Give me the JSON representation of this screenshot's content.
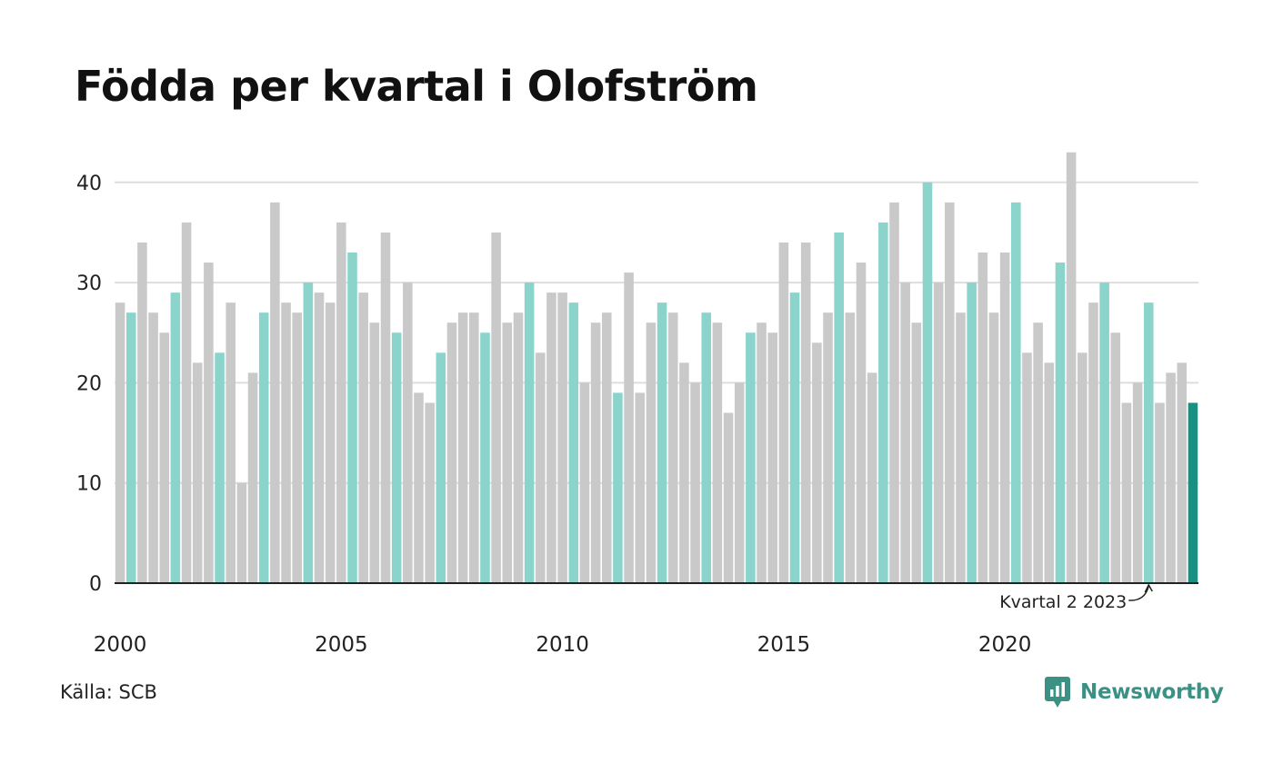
{
  "chart_data": {
    "type": "bar",
    "title": "Födda per kvartal i Olofström",
    "source": "Källa: SCB",
    "brand": "Newsworthy",
    "xlabel": "",
    "ylabel": "",
    "ylim": [
      0,
      45
    ],
    "yticks": [
      0,
      10,
      20,
      30,
      40
    ],
    "year_labels": [
      "2000",
      "2005",
      "2010",
      "2015",
      "2020"
    ],
    "grid": true,
    "legend": "none",
    "annotation": "Kvartal 2 2023",
    "highlight_quarter": 2,
    "colors": {
      "bar": "#c9c9c9",
      "highlight": "#8ad4cc",
      "latest": "#1a9082",
      "grid": "#dddddd",
      "axis": "#222222"
    },
    "categories": [
      "2000 Q1",
      "2000 Q2",
      "2000 Q3",
      "2000 Q4",
      "2001 Q1",
      "2001 Q2",
      "2001 Q3",
      "2001 Q4",
      "2002 Q1",
      "2002 Q2",
      "2002 Q3",
      "2002 Q4",
      "2003 Q1",
      "2003 Q2",
      "2003 Q3",
      "2003 Q4",
      "2004 Q1",
      "2004 Q2",
      "2004 Q3",
      "2004 Q4",
      "2005 Q1",
      "2005 Q2",
      "2005 Q3",
      "2005 Q4",
      "2006 Q1",
      "2006 Q2",
      "2006 Q3",
      "2006 Q4",
      "2007 Q1",
      "2007 Q2",
      "2007 Q3",
      "2007 Q4",
      "2008 Q1",
      "2008 Q2",
      "2008 Q3",
      "2008 Q4",
      "2009 Q1",
      "2009 Q2",
      "2009 Q3",
      "2009 Q4",
      "2010 Q1",
      "2010 Q2",
      "2010 Q3",
      "2010 Q4",
      "2011 Q1",
      "2011 Q2",
      "2011 Q3",
      "2011 Q4",
      "2012 Q1",
      "2012 Q2",
      "2012 Q3",
      "2012 Q4",
      "2013 Q1",
      "2013 Q2",
      "2013 Q3",
      "2013 Q4",
      "2014 Q1",
      "2014 Q2",
      "2014 Q3",
      "2014 Q4",
      "2015 Q1",
      "2015 Q2",
      "2015 Q3",
      "2015 Q4",
      "2016 Q1",
      "2016 Q2",
      "2016 Q3",
      "2016 Q4",
      "2017 Q1",
      "2017 Q2",
      "2017 Q3",
      "2017 Q4",
      "2018 Q1",
      "2018 Q2",
      "2018 Q3",
      "2018 Q4",
      "2019 Q1",
      "2019 Q2",
      "2019 Q3",
      "2019 Q4",
      "2020 Q1",
      "2020 Q2",
      "2020 Q3",
      "2020 Q4",
      "2021 Q1",
      "2021 Q2",
      "2021 Q3",
      "2021 Q4",
      "2022 Q1",
      "2022 Q2",
      "2022 Q3",
      "2022 Q4",
      "2023 Q1",
      "2023 Q2",
      "2023 Q3",
      "2023 Q4",
      "2024 Q1",
      "2024 Q2"
    ],
    "values": [
      28,
      27,
      34,
      27,
      25,
      29,
      36,
      22,
      32,
      23,
      28,
      10,
      21,
      27,
      38,
      28,
      27,
      30,
      29,
      28,
      36,
      33,
      29,
      26,
      35,
      25,
      30,
      19,
      18,
      23,
      26,
      27,
      27,
      25,
      35,
      26,
      27,
      30,
      23,
      29,
      29,
      28,
      20,
      26,
      27,
      19,
      31,
      19,
      26,
      28,
      27,
      22,
      20,
      27,
      26,
      17,
      20,
      25,
      26,
      25,
      34,
      29,
      34,
      24,
      27,
      35,
      27,
      32,
      21,
      36,
      38,
      30,
      26,
      40,
      30,
      38,
      27,
      30,
      33,
      27,
      33,
      38,
      23,
      26,
      22,
      32,
      43,
      23,
      28,
      30,
      25,
      18,
      20,
      28,
      18,
      21,
      22,
      18
    ]
  }
}
